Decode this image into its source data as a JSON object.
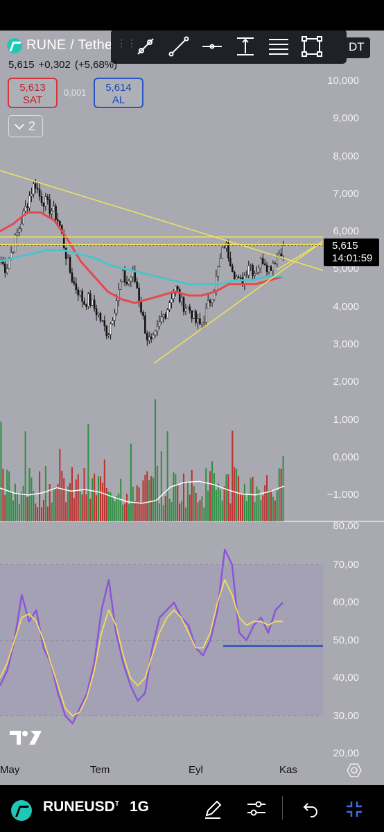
{
  "header": {
    "symbol": "RUNE / Tethe",
    "pair_tail": "DT",
    "last_price": "5,615",
    "change_abs": "+0,302",
    "change_pct": "(+5,68%)"
  },
  "trade": {
    "sell_price": "5,613",
    "sell_label": "SAT",
    "spread": "0,001",
    "buy_price": "5,614",
    "buy_label": "AL"
  },
  "indicators_toggle": {
    "count": "2"
  },
  "toolbar": {
    "handle": "⋮⋮",
    "tools": [
      "trend-line-tool",
      "line-tool",
      "horizontal-line-tool",
      "vertical-measure-tool",
      "fib-retracement-tool",
      "rectangle-tool"
    ]
  },
  "price_axis": {
    "ticks": [
      "10,000",
      "9,000",
      "8,000",
      "7,000",
      "6,000",
      "5,000",
      "4,000",
      "3,000",
      "2,000",
      "1,000",
      "0,000",
      "−1,000"
    ]
  },
  "price_tag": {
    "price": "5,615",
    "countdown": "14:01:59"
  },
  "rsi_axis": {
    "ticks": [
      "80,00",
      "70,00",
      "60,00",
      "50,00",
      "40,00",
      "30,00",
      "20,00"
    ]
  },
  "time_axis": {
    "labels": [
      "May",
      "Tem",
      "Eyl",
      "Kas"
    ]
  },
  "bottom_bar": {
    "symbol": "RUNEUSD",
    "symbol_sup": "T",
    "interval": "1G"
  },
  "colors": {
    "chart_bg": "#a9a9b1",
    "rsi_band": "#a39fb7",
    "ma_red": "#e5484d",
    "ma_cyan": "#4fc2c9",
    "trend_yellow": "#f2e35a",
    "volume_red": "#b9312f",
    "volume_green": "#2f8f43",
    "rsi_purple": "#8a56d8",
    "rsi_ma_yellow": "#f3de55",
    "support_blue": "#3d5ab0"
  },
  "chart_data": [
    {
      "type": "candlestick",
      "title": "RUNE / Tether",
      "ylim": [
        2,
        10
      ],
      "x_labels": [
        "May",
        "Tem",
        "Eyl",
        "Kas"
      ],
      "close_series": [
        5.2,
        5.0,
        5.4,
        5.8,
        6.2,
        6.6,
        7.0,
        7.3,
        6.9,
        6.8,
        6.6,
        6.5,
        6.2,
        5.6,
        5.0,
        4.6,
        4.4,
        4.1,
        4.2,
        4.0,
        3.8,
        3.5,
        3.3,
        3.8,
        4.3,
        4.8,
        4.6,
        4.9,
        4.5,
        3.8,
        3.2,
        3.0,
        3.3,
        3.7,
        3.9,
        4.3,
        4.5,
        4.1,
        4.0,
        3.9,
        3.6,
        3.5,
        3.8,
        4.2,
        4.6,
        5.2,
        5.7,
        5.3,
        4.9,
        4.6,
        4.8,
        5.2,
        4.9,
        5.1,
        5.3,
        5.0,
        5.2,
        5.4,
        5.615
      ],
      "last": 5.615,
      "moving_averages": [
        {
          "name": "red",
          "values": [
            6.0,
            6.2,
            6.5,
            6.5,
            6.3,
            5.8,
            5.2,
            4.8,
            4.4,
            4.2,
            4.1,
            4.2,
            4.3,
            4.4,
            4.3,
            4.3,
            4.4,
            4.6,
            4.6,
            4.6,
            4.7,
            4.8
          ]
        },
        {
          "name": "cyan",
          "values": [
            5.2,
            5.3,
            5.4,
            5.5,
            5.5,
            5.4,
            5.3,
            5.1,
            5.0,
            4.9,
            4.8,
            4.7,
            4.6,
            4.6,
            4.6,
            4.7,
            4.7,
            4.8,
            4.8
          ]
        }
      ],
      "horizontal_levels": [
        5.85,
        5.65
      ],
      "trendlines": [
        {
          "from": [
            "start",
            8.0
          ],
          "to": [
            "Kas",
            5.0
          ]
        },
        {
          "from": [
            "Tem",
            2.5
          ],
          "to": [
            "Kas",
            5.7
          ]
        }
      ]
    },
    {
      "type": "bar",
      "title": "Volume",
      "ylim": [
        -1.5,
        1.8
      ],
      "note": "red/green volume bars with white moving average"
    },
    {
      "type": "line",
      "title": "RSI",
      "ylim": [
        20,
        80
      ],
      "band": [
        30,
        70
      ],
      "series": [
        {
          "name": "",
          "values": [
            38,
            42,
            50,
            62,
            55,
            58,
            48,
            44,
            36,
            30,
            28,
            32,
            36,
            44,
            58,
            66,
            52,
            44,
            38,
            34,
            36,
            48,
            56,
            58,
            60,
            56,
            54,
            48,
            46,
            50,
            58,
            74,
            70,
            52,
            50,
            54,
            56,
            52,
            58,
            60
          ]
        },
        {
          "name": "",
          "values": [
            40,
            44,
            50,
            56,
            57,
            55,
            50,
            44,
            38,
            32,
            30,
            31,
            35,
            42,
            52,
            58,
            54,
            46,
            40,
            38,
            40,
            46,
            52,
            56,
            58,
            56,
            52,
            48,
            48,
            52,
            60,
            66,
            62,
            56,
            54,
            55,
            55,
            54,
            55,
            55
          ]
        }
      ],
      "support_level": 48.5
    }
  ]
}
